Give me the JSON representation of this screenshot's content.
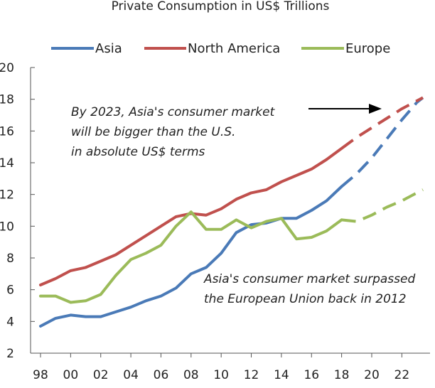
{
  "chart_data": {
    "type": "line",
    "title": "Private Consumption in US$ Trillions",
    "xlabel": "",
    "ylabel": "",
    "ylim": [
      2,
      20
    ],
    "xlim": [
      1998,
      2023.4
    ],
    "grid": false,
    "legend_position": "top",
    "x": [
      1998,
      1999,
      2000,
      2001,
      2002,
      2003,
      2004,
      2005,
      2006,
      2007,
      2008,
      2009,
      2010,
      2011,
      2012,
      2013,
      2014,
      2015,
      2016,
      2017,
      2018,
      2019,
      2020,
      2021,
      2022,
      2023,
      2023.4
    ],
    "series": [
      {
        "name": "Asia",
        "color": "#4a7ab7",
        "solid_values": [
          3.7,
          4.2,
          4.4,
          4.3,
          4.3,
          4.6,
          4.9,
          5.3,
          5.6,
          6.1,
          7.0,
          7.4,
          8.3,
          9.6,
          10.1,
          10.2,
          10.5,
          10.5,
          11.0,
          11.6,
          12.5,
          null,
          null,
          null,
          null,
          null,
          null
        ],
        "projected_values": [
          null,
          null,
          null,
          null,
          null,
          null,
          null,
          null,
          null,
          null,
          null,
          null,
          null,
          null,
          null,
          null,
          null,
          null,
          null,
          null,
          12.5,
          13.3,
          14.3,
          15.5,
          16.7,
          17.8,
          18.1
        ]
      },
      {
        "name": "North America",
        "color": "#c0504d",
        "solid_values": [
          6.3,
          6.7,
          7.2,
          7.4,
          7.8,
          8.2,
          8.8,
          9.4,
          10.0,
          10.6,
          10.8,
          10.7,
          11.1,
          11.7,
          12.1,
          12.3,
          12.8,
          13.2,
          13.6,
          14.2,
          14.9,
          null,
          null,
          null,
          null,
          null,
          null
        ],
        "projected_values": [
          null,
          null,
          null,
          null,
          null,
          null,
          null,
          null,
          null,
          null,
          null,
          null,
          null,
          null,
          null,
          null,
          null,
          null,
          null,
          null,
          14.9,
          15.6,
          16.2,
          16.8,
          17.4,
          17.9,
          18.1
        ]
      },
      {
        "name": "Europe",
        "color": "#9bbb59",
        "solid_values": [
          5.6,
          5.6,
          5.2,
          5.3,
          5.7,
          6.9,
          7.9,
          8.3,
          8.8,
          10.0,
          10.9,
          9.8,
          9.8,
          10.4,
          9.9,
          10.3,
          10.5,
          9.2,
          9.3,
          9.7,
          10.4,
          null,
          null,
          null,
          null,
          null,
          null
        ],
        "projected_values": [
          null,
          null,
          null,
          null,
          null,
          null,
          null,
          null,
          null,
          null,
          null,
          null,
          null,
          null,
          null,
          null,
          null,
          null,
          null,
          null,
          10.4,
          10.3,
          10.7,
          11.2,
          11.6,
          12.1,
          12.3
        ]
      }
    ],
    "x_ticks": [
      "98",
      "00",
      "02",
      "04",
      "06",
      "08",
      "10",
      "12",
      "14",
      "16",
      "18",
      "20",
      "22"
    ],
    "y_ticks": [
      "2",
      "4",
      "6",
      "8",
      "10",
      "12",
      "14",
      "16",
      "18",
      "20"
    ],
    "annotations": [
      {
        "id": "asia-bigger",
        "lines": [
          "By 2023, Asia's consumer market",
          "will be bigger than the U.S.",
          "in absolute US$ terms"
        ],
        "has_arrow": true
      },
      {
        "id": "asia-surpassed",
        "lines": [
          "Asia's consumer market surpassed",
          "the European Union back in 2012"
        ],
        "has_arrow": false
      }
    ]
  }
}
